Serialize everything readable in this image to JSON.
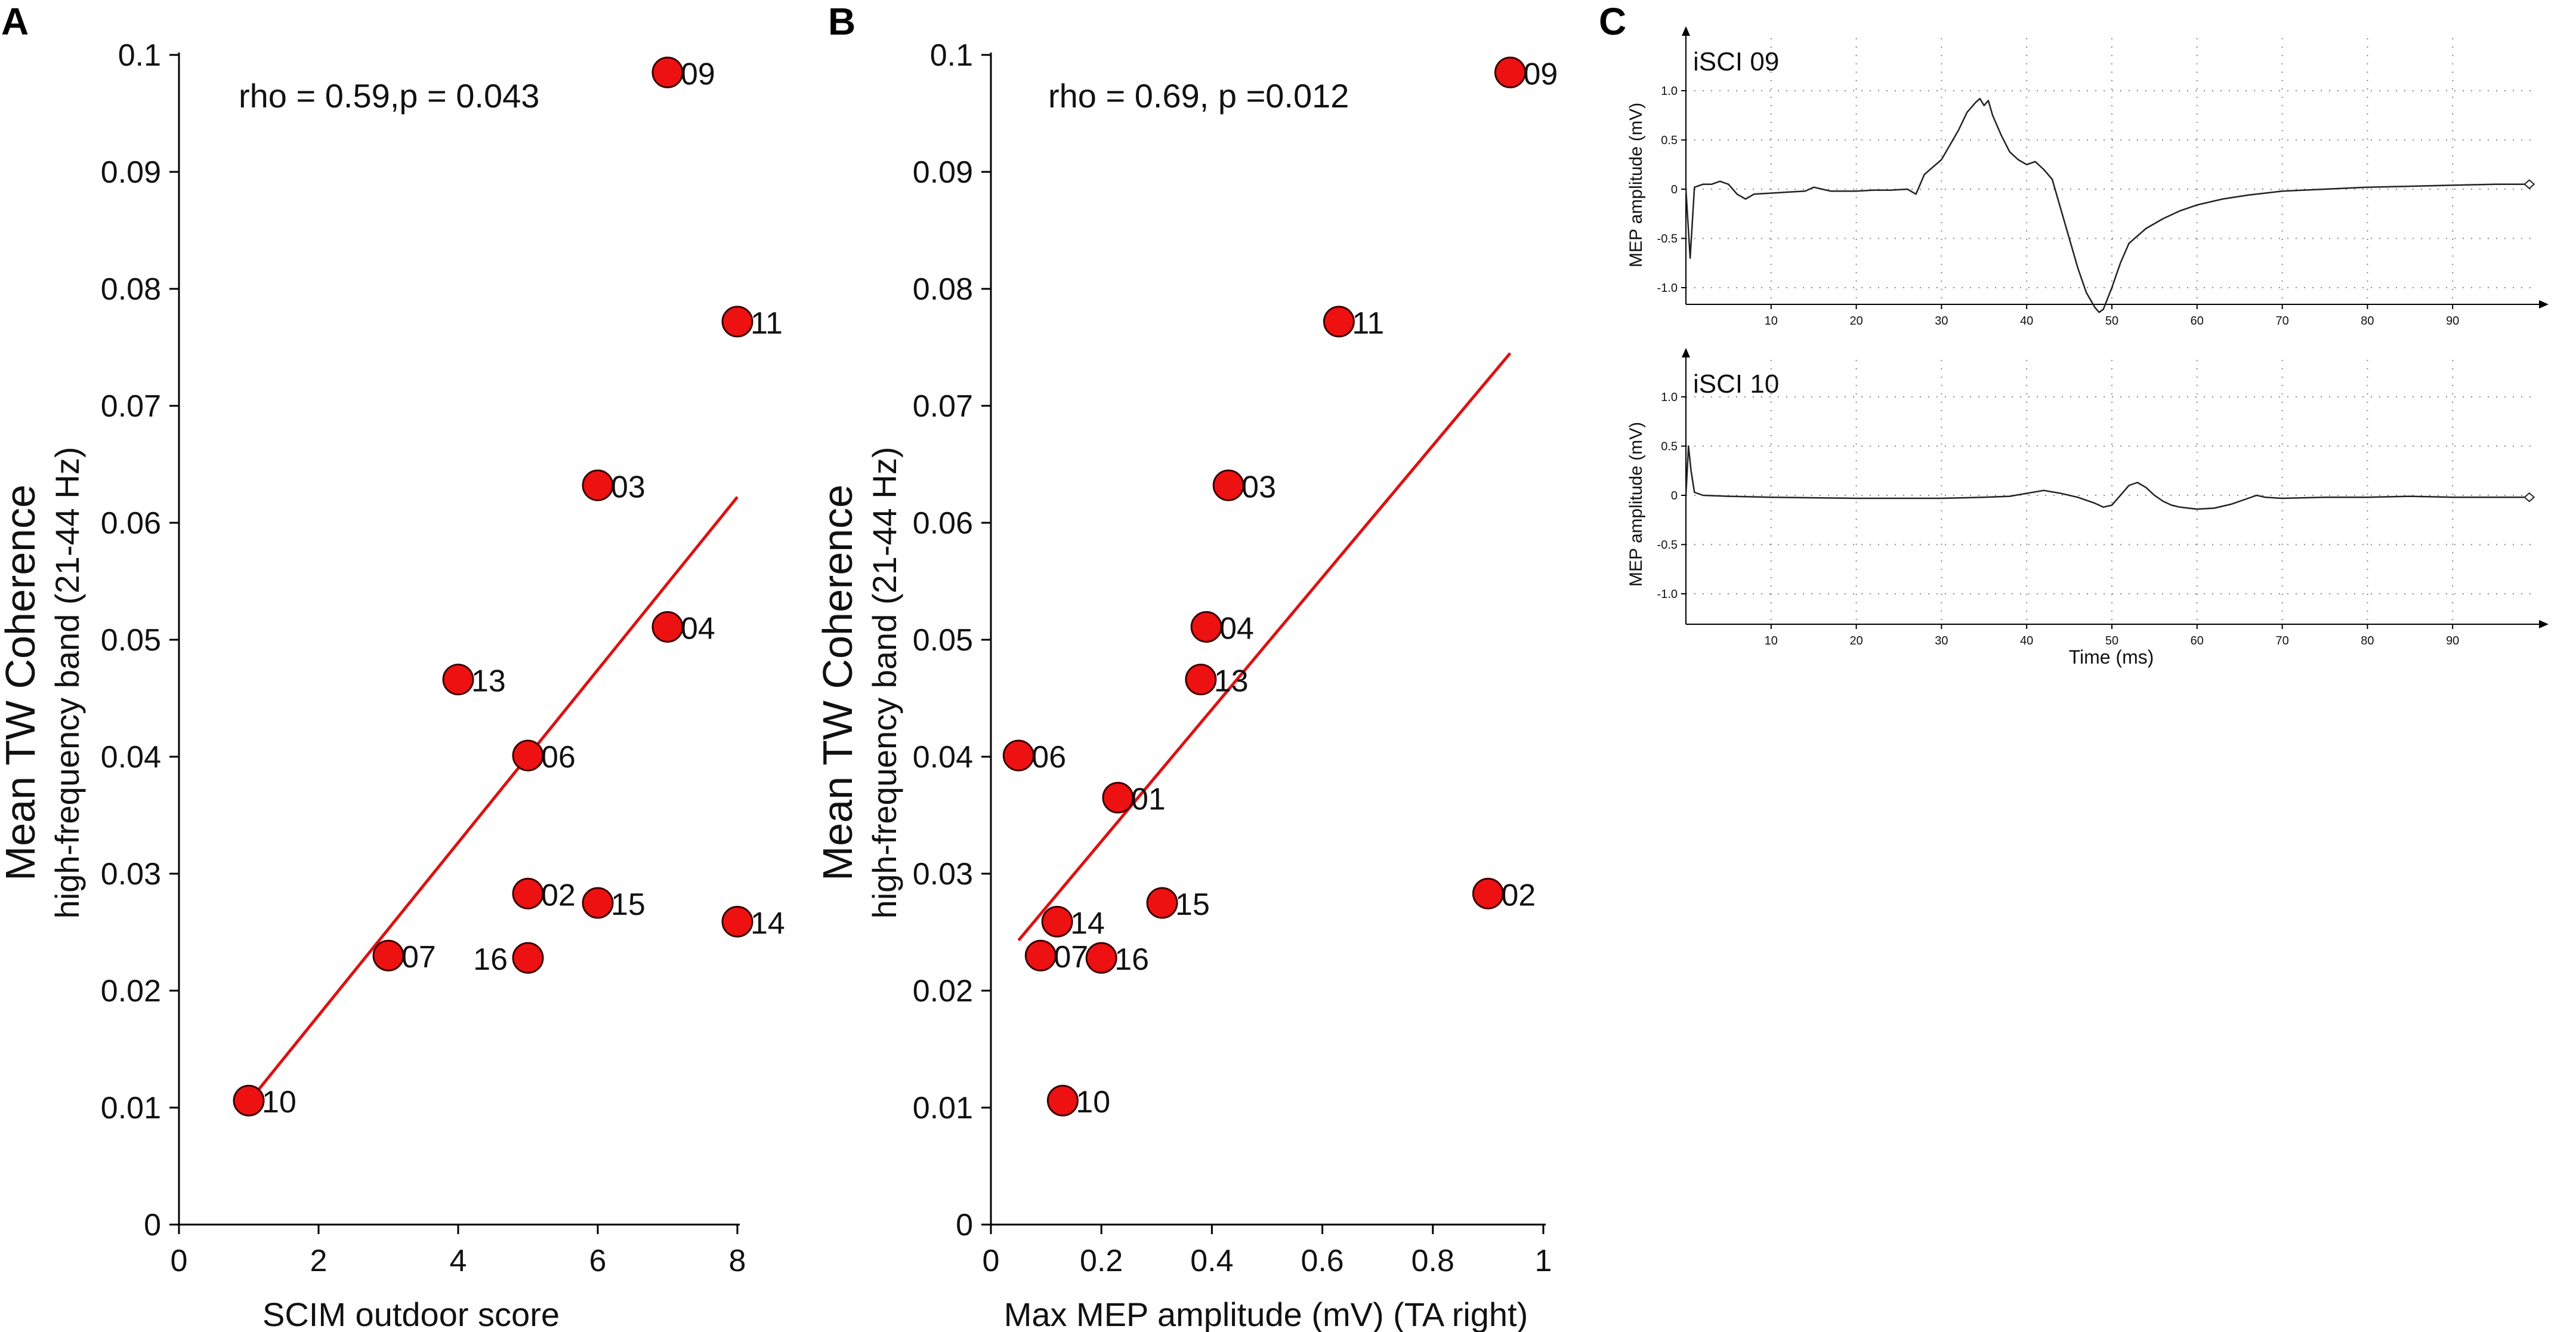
{
  "chart_data": [
    {
      "panel": "A",
      "type": "scatter",
      "annotation": "rho = 0.59,p = 0.043",
      "xlabel": "SCIM outdoor score",
      "ylabel": "Mean TW Coherence",
      "ylabel2": "high-frequency band (21-44 Hz)",
      "xlim": [
        0,
        8
      ],
      "ylim": [
        0,
        0.1
      ],
      "xticks": [
        0,
        2,
        4,
        6,
        8
      ],
      "xtick_labels": [
        "0",
        "2",
        "4",
        "6",
        "8"
      ],
      "yticks": [
        0,
        0.01,
        0.02,
        0.03,
        0.04,
        0.05,
        0.06,
        0.07,
        0.08,
        0.09,
        0.1
      ],
      "ytick_labels": [
        "0",
        "0.01",
        "0.02",
        "0.03",
        "0.04",
        "0.05",
        "0.06",
        "0.07",
        "0.08",
        "0.09",
        "0.1"
      ],
      "points": [
        {
          "label": "09",
          "x": 7,
          "y": 0.0985
        },
        {
          "label": "11",
          "x": 8,
          "y": 0.0772
        },
        {
          "label": "03",
          "x": 6,
          "y": 0.0632
        },
        {
          "label": "04",
          "x": 7,
          "y": 0.0511
        },
        {
          "label": "13",
          "x": 4,
          "y": 0.0466
        },
        {
          "label": "06",
          "x": 5,
          "y": 0.0401
        },
        {
          "label": "02",
          "x": 5,
          "y": 0.0283
        },
        {
          "label": "15",
          "x": 6,
          "y": 0.0275
        },
        {
          "label": "14",
          "x": 8,
          "y": 0.0259
        },
        {
          "label": "07",
          "x": 3,
          "y": 0.023
        },
        {
          "label": "16",
          "x": 5,
          "y": 0.0228
        },
        {
          "label": "10",
          "x": 1,
          "y": 0.0106
        }
      ],
      "fit_line": {
        "x": [
          1,
          8
        ],
        "y": [
          0.0105,
          0.0622
        ]
      },
      "point_color": "#ee1111",
      "line_color": "#dd1111"
    },
    {
      "panel": "B",
      "type": "scatter",
      "annotation": "rho = 0.69, p =0.012",
      "xlabel": "Max MEP amplitude (mV) (TA right)",
      "ylabel": "Mean TW Coherence",
      "ylabel2": "high-frequency band (21-44 Hz)",
      "xlim": [
        0,
        1
      ],
      "ylim": [
        0,
        0.1
      ],
      "xticks": [
        0,
        0.2,
        0.4,
        0.6,
        0.8,
        1
      ],
      "xtick_labels": [
        "0",
        "0.2",
        "0.4",
        "0.6",
        "0.8",
        "1"
      ],
      "yticks": [
        0,
        0.01,
        0.02,
        0.03,
        0.04,
        0.05,
        0.06,
        0.07,
        0.08,
        0.09,
        0.1
      ],
      "ytick_labels": [
        "0",
        "0.01",
        "0.02",
        "0.03",
        "0.04",
        "0.05",
        "0.06",
        "0.07",
        "0.08",
        "0.09",
        "0.1"
      ],
      "points": [
        {
          "label": "09",
          "x": 0.94,
          "y": 0.0985
        },
        {
          "label": "11",
          "x": 0.63,
          "y": 0.0772
        },
        {
          "label": "03",
          "x": 0.43,
          "y": 0.0632
        },
        {
          "label": "04",
          "x": 0.39,
          "y": 0.0511
        },
        {
          "label": "13",
          "x": 0.38,
          "y": 0.0466
        },
        {
          "label": "06",
          "x": 0.05,
          "y": 0.0401
        },
        {
          "label": "01",
          "x": 0.23,
          "y": 0.0365
        },
        {
          "label": "02",
          "x": 0.9,
          "y": 0.0283
        },
        {
          "label": "15",
          "x": 0.31,
          "y": 0.0275
        },
        {
          "label": "14",
          "x": 0.12,
          "y": 0.0259
        },
        {
          "label": "07",
          "x": 0.09,
          "y": 0.023
        },
        {
          "label": "16",
          "x": 0.2,
          "y": 0.0228
        },
        {
          "label": "10",
          "x": 0.13,
          "y": 0.0106
        }
      ],
      "fit_line": {
        "x": [
          0.05,
          0.94
        ],
        "y": [
          0.0243,
          0.0745
        ]
      },
      "point_color": "#ee1111",
      "line_color": "#dd1111"
    },
    {
      "panel": "C",
      "type": "line",
      "xlabel": "Time (ms)",
      "ylabel": "MEP amplitude (mV)",
      "xlim": [
        0,
        100
      ],
      "ylim": [
        -1.3,
        1.4
      ],
      "xticks": [
        10,
        20,
        30,
        40,
        50,
        60,
        70,
        80,
        90
      ],
      "yticks": [
        1.0,
        0.5,
        0,
        -0.5,
        -1.0
      ],
      "ytick_labels": [
        "1.0",
        "0.5",
        "0",
        "-0.5",
        "-1.0"
      ],
      "traces": [
        {
          "title": "iSCI 09",
          "x": [
            0,
            0.5,
            1,
            2,
            3,
            4,
            5,
            6,
            7,
            8,
            10,
            12,
            14,
            15,
            16,
            17,
            18,
            20,
            22,
            24,
            26,
            27,
            28,
            30,
            31,
            32,
            33,
            34,
            34.5,
            35,
            35.5,
            36,
            37,
            38,
            39,
            40,
            41,
            42,
            43,
            44,
            45,
            46,
            47,
            48,
            48.5,
            49,
            50,
            51,
            52,
            54,
            56,
            58,
            60,
            63,
            66,
            70,
            75,
            80,
            85,
            90,
            95,
            99
          ],
          "y": [
            0,
            -0.7,
            0.02,
            0.05,
            0.05,
            0.08,
            0.05,
            -0.05,
            -0.1,
            -0.05,
            -0.04,
            -0.03,
            -0.02,
            0.02,
            0.0,
            -0.02,
            -0.02,
            -0.02,
            -0.01,
            -0.01,
            0.0,
            -0.05,
            0.15,
            0.3,
            0.45,
            0.6,
            0.78,
            0.88,
            0.92,
            0.85,
            0.9,
            0.75,
            0.55,
            0.38,
            0.3,
            0.25,
            0.28,
            0.2,
            0.1,
            -0.2,
            -0.5,
            -0.8,
            -1.05,
            -1.2,
            -1.25,
            -1.22,
            -1.0,
            -0.75,
            -0.55,
            -0.4,
            -0.3,
            -0.22,
            -0.16,
            -0.1,
            -0.06,
            -0.02,
            0.0,
            0.02,
            0.03,
            0.04,
            0.05,
            0.05
          ]
        },
        {
          "title": "iSCI 10",
          "x": [
            0,
            0.3,
            0.6,
            1,
            2,
            5,
            10,
            20,
            30,
            35,
            38,
            40,
            42,
            44,
            46,
            48,
            49,
            50,
            51,
            52,
            53,
            54,
            55,
            56,
            57,
            58,
            59,
            60,
            62,
            64,
            66,
            67,
            68,
            70,
            75,
            80,
            85,
            90,
            95,
            99
          ],
          "y": [
            0,
            0.5,
            0.25,
            0.03,
            0.0,
            -0.01,
            -0.02,
            -0.03,
            -0.03,
            -0.02,
            -0.01,
            0.02,
            0.05,
            0.02,
            -0.02,
            -0.08,
            -0.12,
            -0.1,
            0.0,
            0.1,
            0.13,
            0.08,
            0.0,
            -0.06,
            -0.1,
            -0.12,
            -0.13,
            -0.14,
            -0.13,
            -0.09,
            -0.03,
            0.0,
            -0.02,
            -0.03,
            -0.02,
            -0.02,
            -0.01,
            -0.02,
            -0.02,
            -0.02
          ]
        }
      ]
    }
  ]
}
